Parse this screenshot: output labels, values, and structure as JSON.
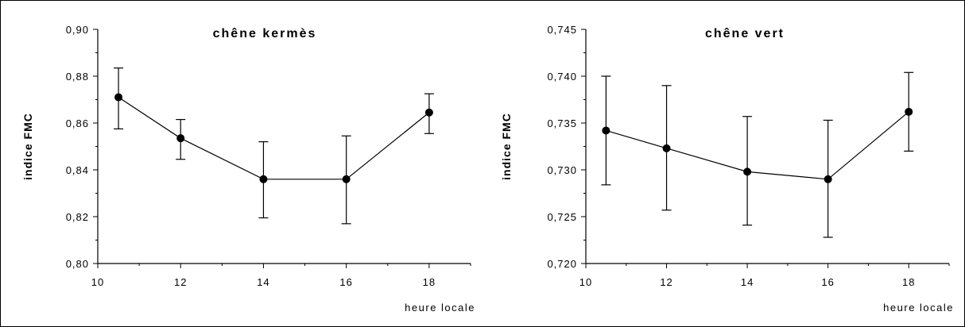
{
  "chart_data": [
    {
      "type": "line",
      "title": "chêne kermès",
      "ylabel": "indice FMC",
      "xlabel": "heure locale",
      "xlim": [
        10,
        19
      ],
      "ylim": [
        0.8,
        0.9
      ],
      "x_ticks": [
        10,
        12,
        14,
        16,
        18
      ],
      "x_tick_labels": [
        "10",
        "12",
        "14",
        "16",
        "18"
      ],
      "y_ticks": [
        0.8,
        0.82,
        0.84,
        0.86,
        0.88,
        0.9
      ],
      "y_tick_labels": [
        "0,80",
        "0,82",
        "0,84",
        "0,86",
        "0,88",
        "0,90"
      ],
      "grid": false,
      "series": [
        {
          "x": [
            10.5,
            12,
            14,
            16,
            18
          ],
          "y": [
            0.871,
            0.8535,
            0.836,
            0.836,
            0.8645
          ],
          "err_low": [
            0.8575,
            0.8445,
            0.8195,
            0.817,
            0.8555
          ],
          "err_high": [
            0.8835,
            0.8615,
            0.852,
            0.8545,
            0.8725
          ]
        }
      ]
    },
    {
      "type": "line",
      "title": "chêne vert",
      "ylabel": "indice FMC",
      "xlabel": "heure locale",
      "xlim": [
        10,
        19
      ],
      "ylim": [
        0.72,
        0.745
      ],
      "x_ticks": [
        10,
        12,
        14,
        16,
        18
      ],
      "x_tick_labels": [
        "10",
        "12",
        "14",
        "16",
        "18"
      ],
      "y_ticks": [
        0.72,
        0.725,
        0.73,
        0.735,
        0.74,
        0.745
      ],
      "y_tick_labels": [
        "0,720",
        "0,725",
        "0,730",
        "0,735",
        "0,740",
        "0,745"
      ],
      "grid": false,
      "series": [
        {
          "x": [
            10.5,
            12,
            14,
            16,
            18
          ],
          "y": [
            0.7342,
            0.7323,
            0.7298,
            0.729,
            0.7362
          ],
          "err_low": [
            0.7284,
            0.7257,
            0.7241,
            0.7228,
            0.732
          ],
          "err_high": [
            0.74,
            0.739,
            0.7357,
            0.7353,
            0.7404
          ]
        }
      ]
    }
  ]
}
